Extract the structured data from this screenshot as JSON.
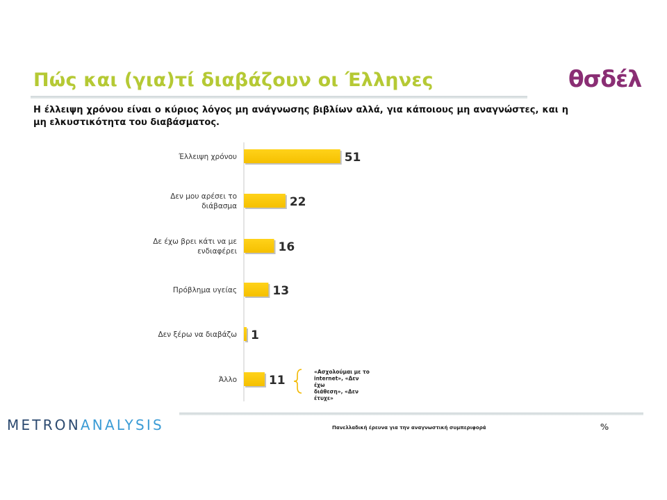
{
  "header": {
    "title": "Πώς και (για)τί διαβάζουν οι Έλληνες",
    "logo": "θσδέλ",
    "subtitle": "Η έλλειψη χρόνου είναι ο κύριος λόγος μη ανάγνωσης βιβλίων αλλά, για κάποιους μη αναγνώστες, και η μη ελκυστικότητα του διαβάσματος."
  },
  "chart_data": {
    "type": "bar",
    "orientation": "horizontal",
    "categories": [
      [
        "Έλλειψη χρόνου"
      ],
      [
        "Δεν μου αρέσει το",
        "διάβασμα"
      ],
      [
        "Δε έχω βρει κάτι να με",
        "ενδιαφέρει"
      ],
      [
        "Πρόβλημα υγείας"
      ],
      [
        "Δεν ξέρω να διαβάζω"
      ],
      [
        "Άλλο"
      ]
    ],
    "values": [
      51,
      22,
      16,
      13,
      1,
      11
    ],
    "bar_color": "#f5c000",
    "annotation": {
      "lines": [
        "«Ασχολούμαι με το",
        "internet», «Δεν",
        "έχω",
        "διάθεση», «Δεν",
        "έτυχε»"
      ]
    }
  },
  "footer": {
    "brand_part1": "METRON",
    "brand_part2": "ANALYSIS",
    "survey_text": "Πανελλαδική έρευνα για την αναγνωστική συμπεριφορά",
    "page_mark": "%"
  }
}
